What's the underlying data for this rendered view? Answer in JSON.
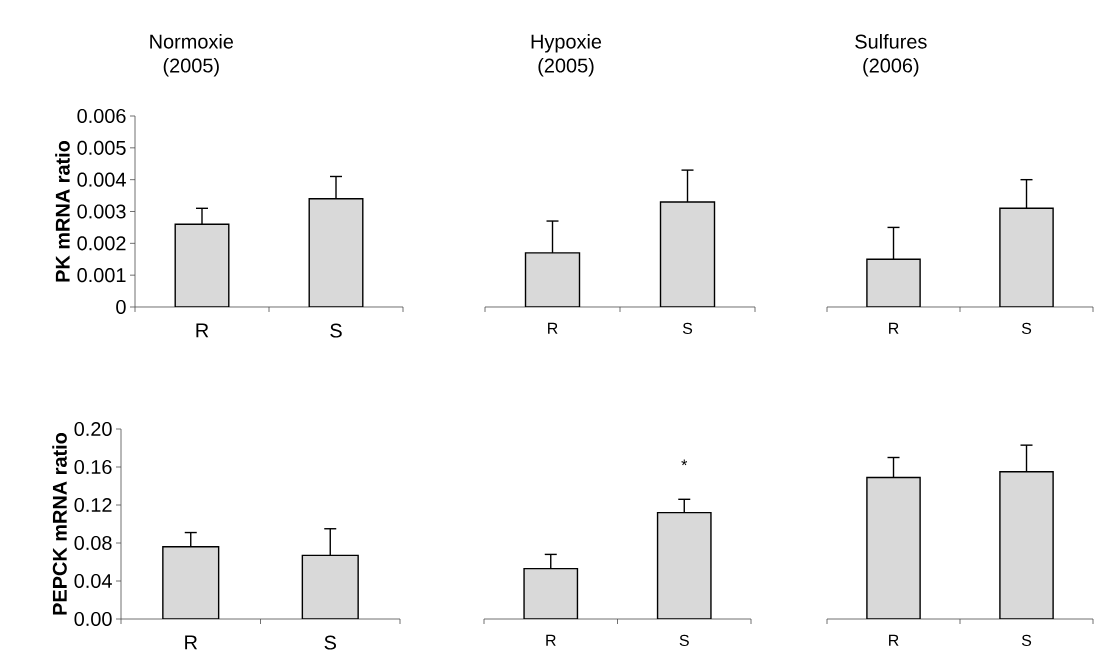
{
  "chart_data": [
    {
      "type": "bar",
      "title": "Normoxie (2005)",
      "ylabel": "PK mRNA ratio",
      "categories": [
        "R",
        "S"
      ],
      "values": [
        0.0026,
        0.0034
      ],
      "errors": [
        [
          0.0026,
          0.0031
        ],
        [
          0.0034,
          0.0041
        ]
      ],
      "color": "#d9d9d9",
      "ylim": [
        0,
        0.006
      ],
      "yticks": [
        0,
        0.001,
        0.002,
        0.003,
        0.004,
        0.005,
        0.006
      ]
    },
    {
      "type": "bar",
      "title": "Hypoxie (2005)",
      "categories": [
        "R",
        "S"
      ],
      "values": [
        0.0017,
        0.0033
      ],
      "errors": [
        [
          0.0017,
          0.0027
        ],
        [
          0.0033,
          0.0043
        ]
      ],
      "color": "#d9d9d9",
      "ylim": [
        0,
        0.006
      ],
      "tick_labels": "x"
    },
    {
      "type": "bar",
      "title": "Sulfures (2006)",
      "categories": [
        "R",
        "S"
      ],
      "values": [
        0.0015,
        0.0031
      ],
      "errors": [
        [
          0.0015,
          0.0025
        ],
        [
          0.0031,
          0.004
        ]
      ],
      "color": "#d9d9d9",
      "ylim": [
        0,
        0.006
      ],
      "tick_labels": "x"
    },
    {
      "type": "bar",
      "ylabel": "PEPCK mRNA ratio",
      "categories": [
        "R",
        "S"
      ],
      "values": [
        0.076,
        0.067
      ],
      "errors": [
        [
          0.076,
          0.091
        ],
        [
          0.067,
          0.095
        ]
      ],
      "color": "#d9d9d9",
      "ylim": [
        0,
        0.2
      ],
      "yticks": [
        {
          "value": 0,
          "label": "0.00"
        },
        {
          "value": 0.04,
          "label": "0.04"
        },
        {
          "value": 0.08,
          "label": "0.08"
        },
        {
          "value": 0.12,
          "label": "0.12"
        },
        {
          "value": 0.16,
          "label": "0.16"
        },
        {
          "value": 0.2,
          "label": "0.20"
        }
      ]
    },
    {
      "type": "bar",
      "categories": [
        "R",
        "S"
      ],
      "values": [
        0.053,
        0.112
      ],
      "errors": [
        [
          0.053,
          0.068
        ],
        [
          0.112,
          0.126
        ]
      ],
      "color": "#d9d9d9",
      "ylim": [
        0,
        0.2
      ],
      "tick_labels": "x",
      "annotations": [
        "*"
      ]
    },
    {
      "type": "bar",
      "categories": [
        "R",
        "S"
      ],
      "values": [
        0.149,
        0.155
      ],
      "errors": [
        [
          0.149,
          0.17
        ],
        [
          0.155,
          0.183
        ]
      ],
      "color": "#d9d9d9",
      "ylim": [
        0,
        0.2
      ],
      "tick_labels": "x"
    }
  ]
}
